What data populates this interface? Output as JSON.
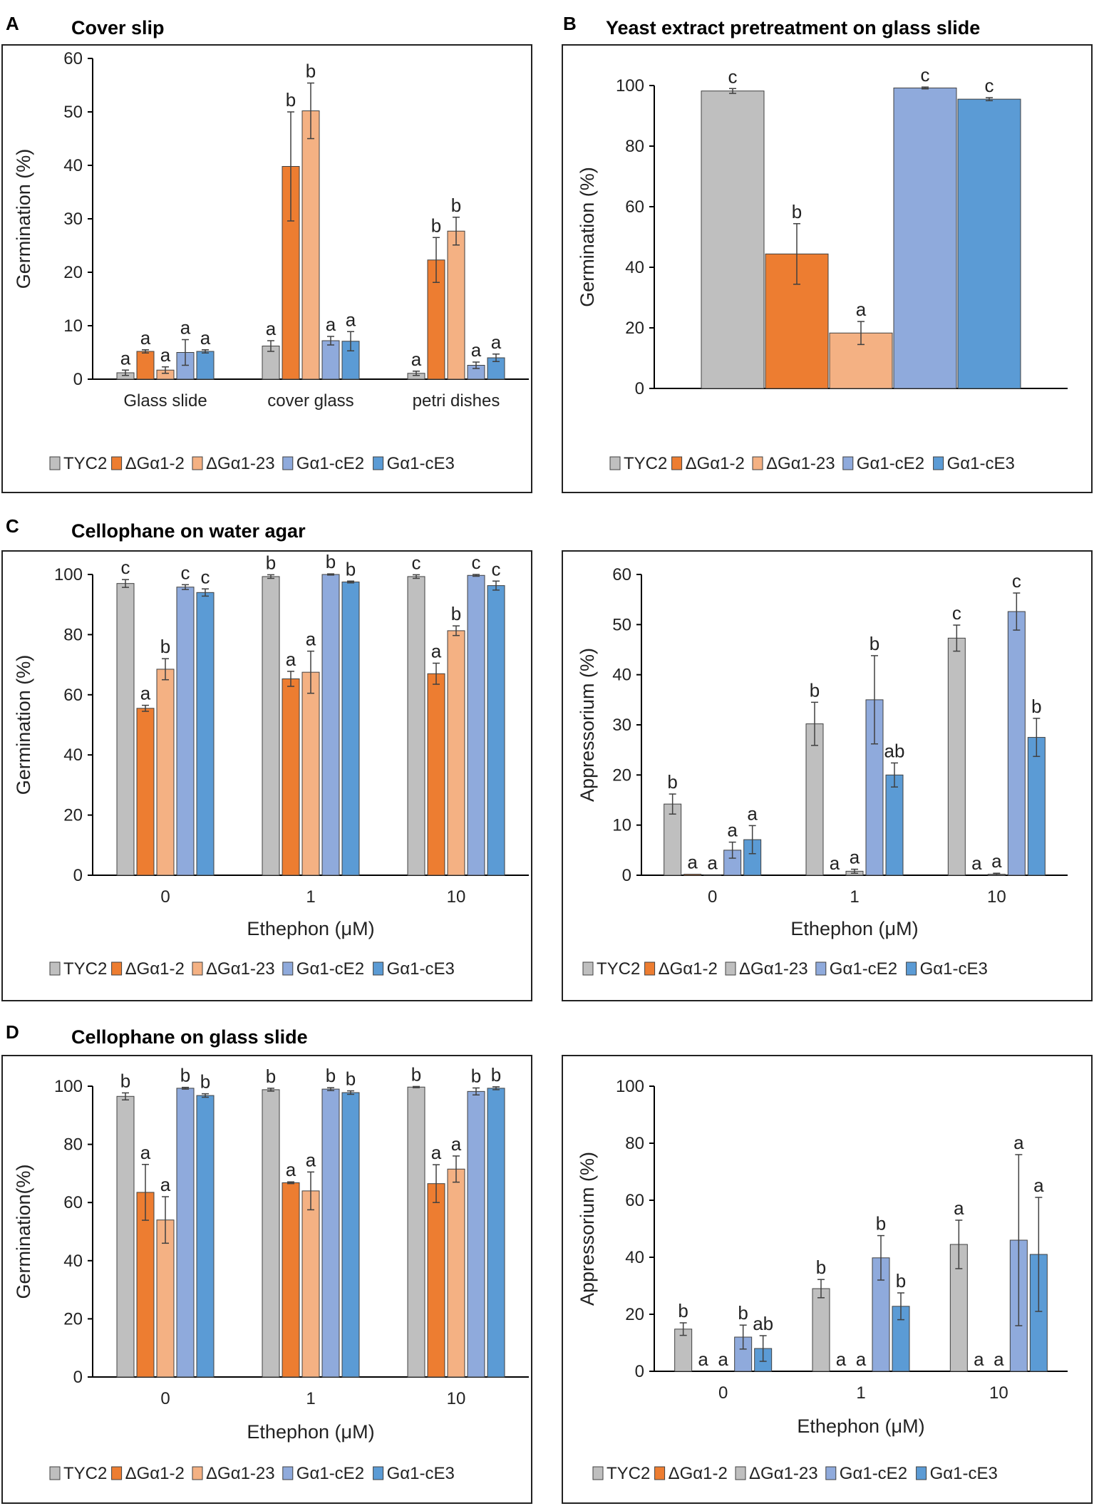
{
  "colors": {
    "TYC2": "#BFBFBF",
    "dGa1_2": "#ED7D31",
    "dGa1_23": "#F4B183",
    "cE2": "#8FAADC",
    "cE3": "#5B9BD5",
    "axis": "#000000",
    "errbar": "#404040"
  },
  "legend_labels": [
    "TYC2",
    "ΔGα1-2",
    "ΔGα1-23",
    "Gα1-cE2",
    "Gα1-cE3"
  ],
  "sections": {
    "A": {
      "letter": "A",
      "title": "Cover slip"
    },
    "B": {
      "letter": "B",
      "title": "Yeast extract pretreatment on glass slide"
    },
    "C": {
      "letter": "C",
      "title": "Cellophane on water agar"
    },
    "D": {
      "letter": "D",
      "title": "Cellophane on glass slide"
    }
  },
  "chart_data": [
    {
      "id": "A",
      "type": "bar",
      "title": "Cover slip",
      "ylabel": "Germination (%)",
      "xlabel": "",
      "ylim": [
        0,
        60
      ],
      "yticks": [
        0,
        10,
        20,
        30,
        40,
        50,
        60
      ],
      "categories": [
        "Glass slide",
        "cover glass",
        "petri dishes"
      ],
      "series": [
        {
          "name": "TYC2",
          "color": "TYC2",
          "values": [
            1.2,
            6.2,
            1.1
          ],
          "errors": [
            0.5,
            1.0,
            0.4
          ],
          "letters": [
            "a",
            "a",
            "a"
          ]
        },
        {
          "name": "ΔGα1-2",
          "color": "dGa1_2",
          "values": [
            5.2,
            39.8,
            22.3
          ],
          "errors": [
            0.3,
            10.2,
            4.2
          ],
          "letters": [
            "a",
            "b",
            "b"
          ]
        },
        {
          "name": "ΔGα1-23",
          "color": "dGa1_23",
          "values": [
            1.7,
            50.2,
            27.7
          ],
          "errors": [
            0.6,
            5.2,
            2.6
          ],
          "letters": [
            "a",
            "b",
            "b"
          ]
        },
        {
          "name": "Gα1-cE2",
          "color": "cE2",
          "values": [
            5.0,
            7.2,
            2.6
          ],
          "errors": [
            2.4,
            0.8,
            0.6
          ],
          "letters": [
            "a",
            "a",
            "a"
          ]
        },
        {
          "name": "Gα1-cE3",
          "color": "cE3",
          "values": [
            5.2,
            7.1,
            4.0
          ],
          "errors": [
            0.3,
            1.8,
            0.7
          ],
          "letters": [
            "a",
            "a",
            "a"
          ]
        }
      ]
    },
    {
      "id": "B",
      "type": "bar",
      "title": "Yeast extract pretreatment on glass slide",
      "ylabel": "Germination (%)",
      "xlabel": "",
      "ylim": [
        0,
        100
      ],
      "yticks": [
        0,
        20,
        40,
        60,
        80,
        100
      ],
      "categories": [
        ""
      ],
      "series": [
        {
          "name": "TYC2",
          "color": "TYC2",
          "values": [
            98.2
          ],
          "errors": [
            0.8
          ],
          "letters": [
            "c"
          ]
        },
        {
          "name": "ΔGα1-2",
          "color": "dGa1_2",
          "values": [
            44.4
          ],
          "errors": [
            10.0
          ],
          "letters": [
            "b"
          ]
        },
        {
          "name": "ΔGα1-23",
          "color": "dGa1_23",
          "values": [
            18.3
          ],
          "errors": [
            3.8
          ],
          "letters": [
            "a"
          ]
        },
        {
          "name": "Gα1-cE2",
          "color": "cE2",
          "values": [
            99.2
          ],
          "errors": [
            0.3
          ],
          "letters": [
            "c"
          ]
        },
        {
          "name": "Gα1-cE3",
          "color": "cE3",
          "values": [
            95.5
          ],
          "errors": [
            0.5
          ],
          "letters": [
            "c"
          ]
        }
      ]
    },
    {
      "id": "C1",
      "type": "bar",
      "title": "Cellophane on water agar",
      "ylabel": "Germination (%)",
      "xlabel": "Ethephon (μM)",
      "ylim": [
        0,
        100
      ],
      "yticks": [
        0,
        20,
        40,
        60,
        80,
        100
      ],
      "categories": [
        "0",
        "1",
        "10"
      ],
      "series": [
        {
          "name": "TYC2",
          "color": "TYC2",
          "values": [
            97.0,
            99.3,
            99.3
          ],
          "errors": [
            1.3,
            0.6,
            0.6
          ],
          "letters": [
            "c",
            "b",
            "c"
          ]
        },
        {
          "name": "ΔGα1-2",
          "color": "dGa1_2",
          "values": [
            55.5,
            65.3,
            67.0
          ],
          "errors": [
            1.0,
            2.5,
            3.5
          ],
          "letters": [
            "a",
            "a",
            "a"
          ]
        },
        {
          "name": "ΔGα1-23",
          "color": "dGa1_23",
          "values": [
            68.5,
            67.5,
            81.3
          ],
          "errors": [
            3.5,
            7.0,
            1.6
          ],
          "letters": [
            "b",
            "a",
            "b"
          ]
        },
        {
          "name": "Gα1-cE2",
          "color": "cE2",
          "values": [
            95.8,
            100.0,
            99.7
          ],
          "errors": [
            0.8,
            0.2,
            0.3
          ],
          "letters": [
            "c",
            "b",
            "c"
          ]
        },
        {
          "name": "Gα1-cE3",
          "color": "cE3",
          "values": [
            94.0,
            97.5,
            96.3
          ],
          "errors": [
            1.2,
            0.3,
            1.5
          ],
          "letters": [
            "c",
            "b",
            "c"
          ]
        }
      ]
    },
    {
      "id": "C2",
      "type": "bar",
      "title": "",
      "ylabel": "Appressorium (%)",
      "xlabel": "Ethephon (μM)",
      "ylim": [
        0,
        60
      ],
      "yticks": [
        0,
        10,
        20,
        30,
        40,
        50,
        60
      ],
      "categories": [
        "0",
        "1",
        "10"
      ],
      "series": [
        {
          "name": "TYC2",
          "color": "TYC2",
          "values": [
            14.2,
            30.2,
            47.3
          ],
          "errors": [
            2.0,
            4.3,
            2.6
          ],
          "letters": [
            "b",
            "b",
            "c"
          ]
        },
        {
          "name": "ΔGα1-2",
          "color": "dGa1_2",
          "values": [
            0.2,
            0.0,
            0.0
          ],
          "errors": [
            0.0,
            0.0,
            0.0
          ],
          "letters": [
            "a",
            "a",
            "a"
          ]
        },
        {
          "name": "ΔGα1-23",
          "color": "TYC2",
          "values": [
            0.1,
            0.8,
            0.2
          ],
          "errors": [
            0.0,
            0.4,
            0.2
          ],
          "letters": [
            "a",
            "a",
            "a"
          ]
        },
        {
          "name": "Gα1-cE2",
          "color": "cE2",
          "values": [
            5.0,
            35.0,
            52.6
          ],
          "errors": [
            1.6,
            8.8,
            3.7
          ],
          "letters": [
            "a",
            "b",
            "c"
          ]
        },
        {
          "name": "Gα1-cE3",
          "color": "cE3",
          "values": [
            7.1,
            20.0,
            27.5
          ],
          "errors": [
            2.8,
            2.4,
            3.8
          ],
          "letters": [
            "a",
            "ab",
            "b"
          ]
        }
      ]
    },
    {
      "id": "D1",
      "type": "bar",
      "title": "Cellophane on glass slide",
      "ylabel": "Germination(%)",
      "xlabel": "Ethephon (μM)",
      "ylim": [
        0,
        100
      ],
      "yticks": [
        0,
        20,
        40,
        60,
        80,
        100
      ],
      "categories": [
        "0",
        "1",
        "10"
      ],
      "series": [
        {
          "name": "TYC2",
          "color": "TYC2",
          "values": [
            96.5,
            98.8,
            99.7
          ],
          "errors": [
            1.2,
            0.5,
            0.2
          ],
          "letters": [
            "b",
            "b",
            "b"
          ]
        },
        {
          "name": "ΔGα1-2",
          "color": "dGa1_2",
          "values": [
            63.5,
            66.8,
            66.5
          ],
          "errors": [
            9.6,
            0.3,
            6.5
          ],
          "letters": [
            "a",
            "a",
            "a"
          ]
        },
        {
          "name": "ΔGα1-23",
          "color": "dGa1_23",
          "values": [
            54.0,
            64.0,
            71.5
          ],
          "errors": [
            8.0,
            6.5,
            4.5
          ],
          "letters": [
            "a",
            "a",
            "a"
          ]
        },
        {
          "name": "Gα1-cE2",
          "color": "cE2",
          "values": [
            99.3,
            99.0,
            98.2
          ],
          "errors": [
            0.3,
            0.5,
            1.2
          ],
          "letters": [
            "b",
            "b",
            "b"
          ]
        },
        {
          "name": "Gα1-cE3",
          "color": "cE3",
          "values": [
            96.8,
            97.8,
            99.3
          ],
          "errors": [
            0.6,
            0.6,
            0.5
          ],
          "letters": [
            "b",
            "b",
            "b"
          ]
        }
      ]
    },
    {
      "id": "D2",
      "type": "bar",
      "title": "",
      "ylabel": "Appressorium (%)",
      "xlabel": "Ethephon (μM)",
      "ylim": [
        0,
        100
      ],
      "yticks": [
        0,
        20,
        40,
        60,
        80,
        100
      ],
      "categories": [
        "0",
        "1",
        "10"
      ],
      "series": [
        {
          "name": "TYC2",
          "color": "TYC2",
          "values": [
            14.8,
            29.0,
            44.5
          ],
          "errors": [
            2.2,
            3.2,
            8.5
          ],
          "letters": [
            "b",
            "b",
            "a"
          ]
        },
        {
          "name": "ΔGα1-2",
          "color": "dGa1_2",
          "values": [
            0.0,
            0.0,
            0.0
          ],
          "errors": [
            0,
            0,
            0
          ],
          "letters": [
            "a",
            "a",
            "a"
          ]
        },
        {
          "name": "ΔGα1-23",
          "color": "TYC2",
          "values": [
            0.0,
            0.0,
            0.0
          ],
          "errors": [
            0,
            0,
            0
          ],
          "letters": [
            "a",
            "a",
            "a"
          ]
        },
        {
          "name": "Gα1-cE2",
          "color": "cE2",
          "values": [
            12.0,
            39.8,
            46.0
          ],
          "errors": [
            4.2,
            7.8,
            30.0
          ],
          "letters": [
            "b",
            "b",
            "a"
          ]
        },
        {
          "name": "Gα1-cE3",
          "color": "cE3",
          "values": [
            8.0,
            22.8,
            41.0
          ],
          "errors": [
            4.5,
            4.7,
            20.0
          ],
          "letters": [
            "ab",
            "b",
            "a"
          ]
        }
      ]
    }
  ]
}
